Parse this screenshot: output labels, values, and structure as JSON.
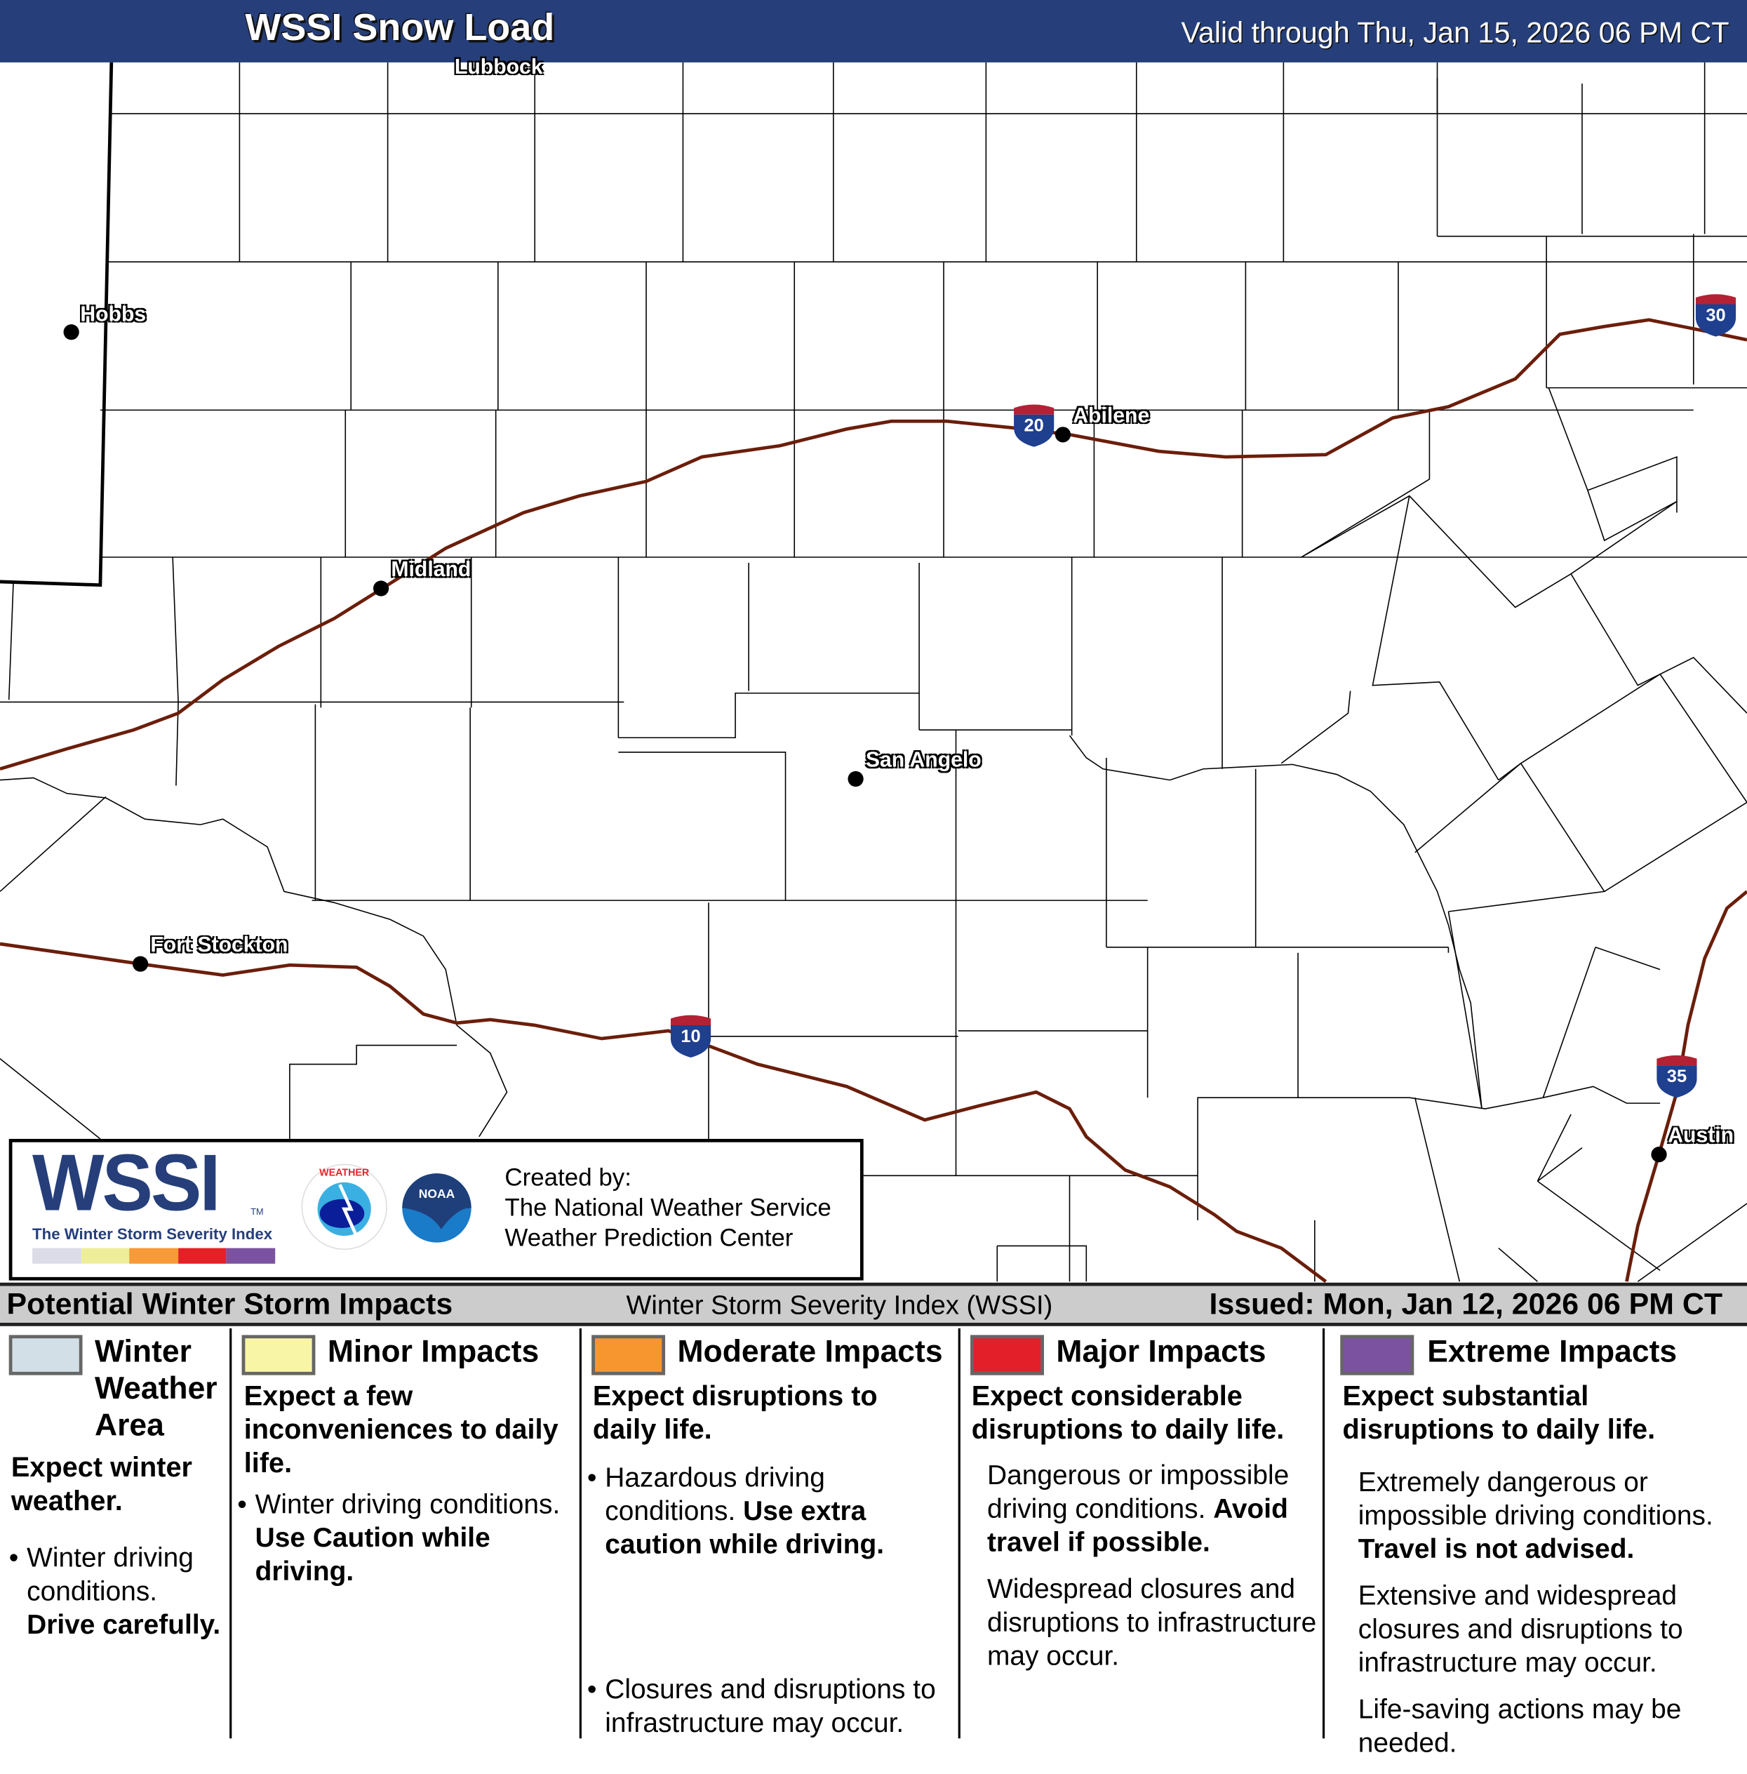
{
  "header": {
    "title": "WSSI Snow Load",
    "valid": "Valid through Thu, Jan 15, 2026 06 PM CT",
    "color": "#263f7a"
  },
  "map": {
    "cities": [
      {
        "name": "Lubbock"
      },
      {
        "name": "Hobbs"
      },
      {
        "name": "Abilene"
      },
      {
        "name": "Midland"
      },
      {
        "name": "San Angelo"
      },
      {
        "name": "Fort Stockton"
      },
      {
        "name": "Austin"
      }
    ],
    "interstates": [
      "20",
      "30",
      "10",
      "35"
    ],
    "highway_color": "#6b1e0a"
  },
  "logo": {
    "wssi": "WSSI",
    "tm": "TM",
    "subtitle": "The Winter Storm Severity Index",
    "scale_colors": [
      "#dcdce8",
      "#eeee9a",
      "#f79a38",
      "#e42127",
      "#7b52a1"
    ],
    "nws_text": "NATIONAL WEATHER SERVICE",
    "noaa_text": "NOAA",
    "created_by": "Created by:",
    "org1": "The National Weather Service",
    "org2": "Weather Prediction Center"
  },
  "bar": {
    "left": "Potential Winter Storm Impacts",
    "center": "Winter Storm Severity Index (WSSI)",
    "right": "Issued: Mon, Jan 12, 2026 06 PM CT"
  },
  "legend": [
    {
      "title": "Winter Weather Area",
      "color": "#d3dfe7",
      "summary": "Expect winter weather.",
      "bullet1": "Winter driving conditions.",
      "bullet1_bold": "Drive carefully."
    },
    {
      "title": "Minor Impacts",
      "color": "#f9f5a6",
      "summary": "Expect a few inconveniences to daily life.",
      "bullet1": "Winter driving conditions.",
      "bullet1_bold": "Use Caution while driving."
    },
    {
      "title": "Moderate Impacts",
      "color": "#f7962f",
      "summary": "Expect disruptions to daily life.",
      "bullet1": "Hazardous driving conditions.",
      "bullet1_bold": "Use extra caution while driving.",
      "bullet2": "Closures and disruptions to infrastructure may occur."
    },
    {
      "title": "Major Impacts",
      "color": "#e3202a",
      "summary": "Expect considerable disruptions to daily life.",
      "p1": "Dangerous or impossible driving conditions.",
      "p1_bold": "Avoid travel if possible.",
      "p2": "Widespread closures and disruptions to infrastructure may occur."
    },
    {
      "title": "Extreme Impacts",
      "color": "#7a52a0",
      "summary": "Expect substantial disruptions to daily life.",
      "p1": "Extremely dangerous or impossible driving conditions.",
      "p1_bold": "Travel is not advised.",
      "p2": "Extensive and widespread closures and disruptions to infrastructure may occur.",
      "p3": "Life-saving actions may be needed."
    }
  ]
}
